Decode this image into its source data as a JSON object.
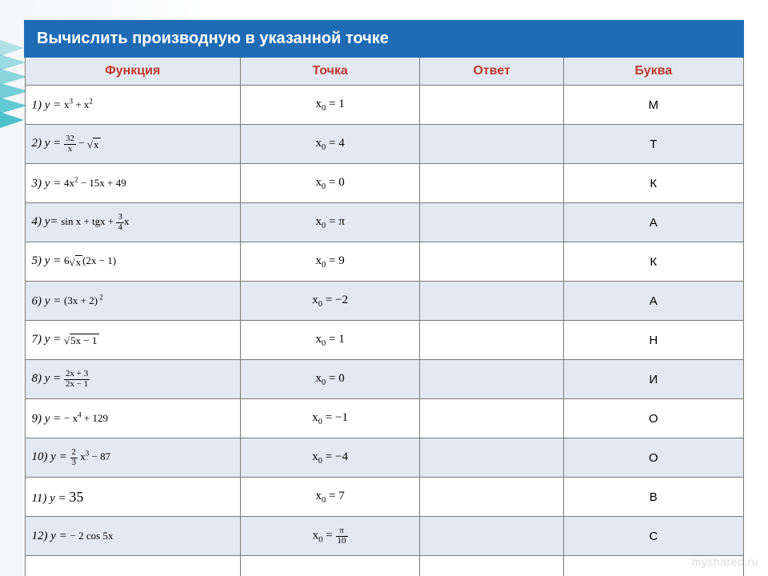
{
  "title": "Вычислить производную в указанной точке",
  "headers": {
    "fn": "Функция",
    "pt": "Точка",
    "ans": "Ответ",
    "letter": "Буква"
  },
  "column_widths_pct": [
    30,
    25,
    20,
    25
  ],
  "rows": [
    {
      "label": "1)   у =",
      "expr_html": "x<sup>3</sup> + x<sup>2</sup>",
      "point_html": "x<sub>0</sub> = 1",
      "letter": "М"
    },
    {
      "label": "2)  y =",
      "expr_html": "<span class='frac'><span class='num'>32</span><span class='den'>x</span></span> − <span class='sqrt'><span class='rad'>x</span></span>",
      "point_html": "x<sub>0</sub> = 4",
      "letter": "Т"
    },
    {
      "label": "3)  y =",
      "expr_html": "4x<sup>2</sup> − 15x + 49",
      "point_html": "x<sub>0</sub> = 0",
      "letter": "К"
    },
    {
      "label": "4) у=",
      "expr_html": "sin x + tgx + <span class='frac'><span class='num'>3</span><span class='den'>4</span></span>x",
      "point_html": "x<sub>0</sub> = π",
      "letter": "А"
    },
    {
      "label": "5) y =",
      "expr_html": "6<span class='sqrt'><span class='rad'>x</span></span>(2x − 1)",
      "point_html": "x<sub>0</sub> = 9",
      "letter": "К"
    },
    {
      "label": "6)  у =",
      "expr_html": "(3x + 2)<sup> 2</sup>",
      "point_html": "x<sub>0</sub> = −2",
      "letter": "А"
    },
    {
      "label": "7) у =",
      "expr_html": "<span class='sqrt'><span class='rad'>5x − 1</span></span>",
      "point_html": "x<sub>0</sub> = 1",
      "letter": "Н"
    },
    {
      "label": "8)  у =",
      "expr_html": "<span class='frac'><span class='num'>2x + 3</span><span class='den'>2x − 1</span></span>",
      "point_html": "x<sub>0</sub> = 0",
      "letter": "И"
    },
    {
      "label": "9) y =",
      "expr_html": "− x<sup>4</sup> + 129",
      "point_html": "x<sub>0</sub> = −1",
      "letter": "О"
    },
    {
      "label": "10) у =",
      "expr_html": "<span class='frac'><span class='num'>2</span><span class='den'>3</span></span> x<sup>3</sup> − 87",
      "point_html": "x<sub>0</sub> = −4",
      "letter": "О"
    },
    {
      "label": "11)   у =",
      "expr_html": "<span style='font-size:18px'>35</span>",
      "point_html": "x<sub>0</sub> = 7",
      "letter": "В"
    },
    {
      "label": "12)  у =",
      "expr_html": "− 2 cos 5x",
      "point_html": "x<sub>0</sub> = <span class='frac'><span class='num'>π</span><span class='den'>10</span></span>",
      "letter": "С"
    }
  ],
  "watermark": "myshared.ru",
  "colors": {
    "title_bg": "#1f6bb5",
    "title_fg": "#ffffff",
    "header_bg": "#e3e9f3",
    "header_fg": "#c0392b",
    "rowA_bg": "#ffffff",
    "rowB_bg": "#e3e9f3",
    "border": "#7a7a7a",
    "ribbon": "#2fb9c4"
  },
  "ribbon_paths": [
    "M0,0 L30,10 L0,20 Z",
    "M0,18 L32,28 L0,38 Z",
    "M0,36 L34,46 L0,56 Z",
    "M0,54 L36,64 L0,74 Z",
    "M0,72 L34,82 L0,92 Z",
    "M0,90 L30,100 L0,110 Z"
  ]
}
